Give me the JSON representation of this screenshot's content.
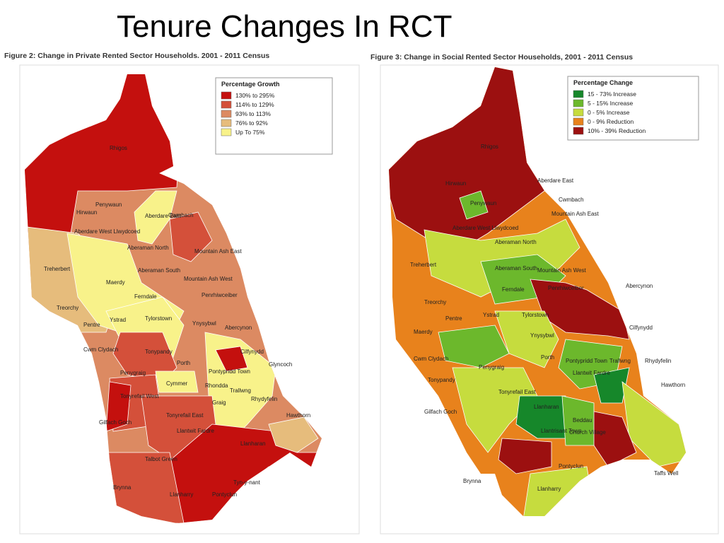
{
  "title": "Tenure Changes In RCT",
  "maps": [
    {
      "caption": "Figure 2: Change in Private Rented Sector Households. 2001 - 2011 Census",
      "legend": {
        "title": "Percentage Growth",
        "items": [
          {
            "label": "130% to 295%",
            "color": "#c4100e"
          },
          {
            "label": "114% to 129%",
            "color": "#d4503a"
          },
          {
            "label": "93% to 113%",
            "color": "#dc8a62"
          },
          {
            "label": "76% to 92%",
            "color": "#e6bc7c"
          },
          {
            "label": "Up To 75%",
            "color": "#f8f28a"
          }
        ]
      },
      "places": [
        "Rhigos",
        "Penywaun",
        "Hirwaun",
        "Aberdare East",
        "Aberdare West Llwydcoed",
        "Cwmbach",
        "Aberaman North",
        "Mountain Ash East",
        "Treherbert",
        "Aberaman South",
        "Mountain Ash West",
        "Maerdy",
        "Ferndale",
        "Penrhiwceiber",
        "Treorchy",
        "Pentre",
        "Ystrad",
        "Tylorstown",
        "Ynysybwl",
        "Abercynon",
        "Cwm Clydach",
        "Tonypandy",
        "Porth",
        "Cilfynydd",
        "Glyncoch",
        "Penygraig",
        "Cymmer",
        "Pontypridd Town",
        "Rhondda",
        "Trallwng",
        "Graig",
        "Rhydyfelin",
        "Tonyrefail West",
        "Tonyrefail East",
        "Hawthorn",
        "Gilfach Goch",
        "Llantwit Fardre",
        "Llanharan",
        "Talbot Green",
        "Tyn-y-nant",
        "Brynna",
        "Llanharry",
        "Pontyclun"
      ]
    },
    {
      "caption": "Figure 3: Change in Social Rented Sector Households, 2001 - 2011 Census",
      "legend": {
        "title": "Percentage Change",
        "items": [
          {
            "label": "15 - 73% Increase",
            "color": "#16872a"
          },
          {
            "label": "5 - 15% Increase",
            "color": "#6cb82c"
          },
          {
            "label": "0 - 5% Increase",
            "color": "#c6dc3e"
          },
          {
            "label": "0 - 9% Reduction",
            "color": "#e8821c"
          },
          {
            "label": "10% - 39% Reduction",
            "color": "#9c1010"
          }
        ]
      },
      "places": [
        "Rhigos",
        "Hirwaun",
        "Penywaun",
        "Aberdare West Llwydcoed",
        "Aberdare East",
        "Cwmbach",
        "Mountain Ash East",
        "Aberaman North",
        "Treherbert",
        "Aberaman South",
        "Mountain Ash West",
        "Penrhiwceiber",
        "Abercynon",
        "Treorchy",
        "Ferndale",
        "Maerdy",
        "Pentre",
        "Ystrad",
        "Tylorstown",
        "Cilfynydd",
        "Ynysybwl",
        "Cwm Clydach",
        "Porth",
        "Pontypridd Town",
        "Trallwng",
        "Rhydyfelin",
        "Tonypandy",
        "Penygraig",
        "Gilfach Goch",
        "Tonyrefail East",
        "Llantwit Fardre",
        "Llanharan",
        "Llantrisant Town",
        "Taffs Well",
        "Pontyclun",
        "Llanharry",
        "Brynna",
        "Hawthorn",
        "Beddau",
        "Church Village"
      ]
    }
  ]
}
